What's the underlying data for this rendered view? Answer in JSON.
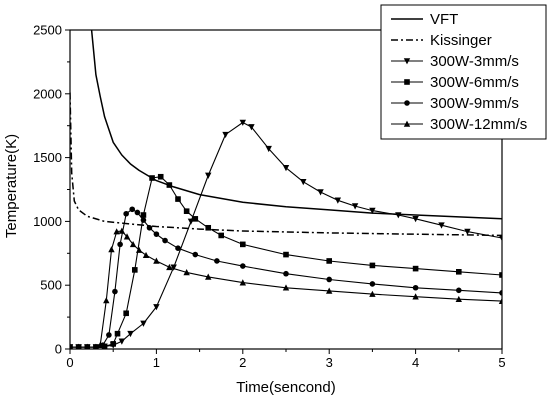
{
  "chart_data": {
    "type": "line",
    "title": "",
    "xlabel": "Time(sencond)",
    "ylabel": "Temperature(K)",
    "xlim": [
      0,
      5
    ],
    "ylim": [
      0,
      2500
    ],
    "x_ticks": [
      0,
      1,
      2,
      3,
      4,
      5
    ],
    "y_ticks": [
      0,
      500,
      1000,
      1500,
      2000,
      2500
    ],
    "grid": false,
    "legend_position": "top-right",
    "series": [
      {
        "name": "VFT",
        "line_style": "solid",
        "marker": "none",
        "x": [
          0.25,
          0.3,
          0.35,
          0.4,
          0.5,
          0.6,
          0.7,
          0.8,
          1.0,
          1.2,
          1.5,
          2.0,
          2.5,
          3.0,
          3.5,
          4.0,
          4.5,
          5.0
        ],
        "y": [
          2500,
          2150,
          1980,
          1820,
          1620,
          1520,
          1450,
          1400,
          1320,
          1270,
          1210,
          1150,
          1115,
          1090,
          1065,
          1050,
          1035,
          1020
        ]
      },
      {
        "name": "Kissinger",
        "line_style": "dashdot",
        "marker": "none",
        "x": [
          0,
          0.02,
          0.05,
          0.1,
          0.2,
          0.4,
          0.7,
          1.0,
          1.5,
          2.0,
          3.0,
          4.0,
          5.0
        ],
        "y": [
          2010,
          1380,
          1160,
          1090,
          1040,
          1000,
          980,
          960,
          940,
          925,
          910,
          900,
          890
        ]
      },
      {
        "name": "300W-3mm/s",
        "line_style": "solid",
        "marker": "triangle-down",
        "x": [
          0,
          0.1,
          0.2,
          0.3,
          0.4,
          0.5,
          0.6,
          0.7,
          0.85,
          1.0,
          1.2,
          1.4,
          1.6,
          1.8,
          2.0,
          2.1,
          2.3,
          2.5,
          2.7,
          2.9,
          3.1,
          3.3,
          3.5,
          3.8,
          4.0,
          4.3,
          4.6,
          5.0
        ],
        "y": [
          15,
          15,
          15,
          15,
          20,
          30,
          60,
          120,
          200,
          330,
          640,
          1000,
          1360,
          1680,
          1775,
          1740,
          1570,
          1420,
          1310,
          1230,
          1165,
          1120,
          1085,
          1050,
          1020,
          970,
          920,
          870
        ]
      },
      {
        "name": "300W-6mm/s",
        "line_style": "solid",
        "marker": "square",
        "x": [
          0,
          0.1,
          0.2,
          0.3,
          0.4,
          0.5,
          0.55,
          0.65,
          0.75,
          0.85,
          0.95,
          1.05,
          1.15,
          1.25,
          1.35,
          1.45,
          1.6,
          1.75,
          2.0,
          2.5,
          3.0,
          3.5,
          4.0,
          4.5,
          5.0
        ],
        "y": [
          15,
          15,
          15,
          15,
          20,
          40,
          120,
          280,
          620,
          1050,
          1340,
          1350,
          1285,
          1175,
          1080,
          1020,
          950,
          890,
          820,
          740,
          690,
          655,
          630,
          605,
          580
        ]
      },
      {
        "name": "300W-9mm/s",
        "line_style": "solid",
        "marker": "circle",
        "x": [
          0,
          0.1,
          0.2,
          0.3,
          0.38,
          0.45,
          0.52,
          0.58,
          0.65,
          0.72,
          0.78,
          0.85,
          0.92,
          1.0,
          1.1,
          1.25,
          1.45,
          1.7,
          2.0,
          2.5,
          3.0,
          3.5,
          4.0,
          4.5,
          5.0
        ],
        "y": [
          15,
          15,
          15,
          15,
          30,
          110,
          450,
          820,
          1060,
          1095,
          1070,
          1010,
          950,
          900,
          850,
          790,
          740,
          690,
          650,
          590,
          545,
          510,
          480,
          460,
          440
        ]
      },
      {
        "name": "300W-12mm/s",
        "line_style": "solid",
        "marker": "triangle-up",
        "x": [
          0,
          0.1,
          0.2,
          0.3,
          0.35,
          0.42,
          0.48,
          0.54,
          0.6,
          0.66,
          0.73,
          0.8,
          0.88,
          1.0,
          1.15,
          1.35,
          1.6,
          2.0,
          2.5,
          3.0,
          3.5,
          4.0,
          4.5,
          5.0
        ],
        "y": [
          15,
          15,
          15,
          15,
          30,
          380,
          780,
          920,
          925,
          880,
          820,
          775,
          735,
          690,
          640,
          600,
          565,
          520,
          480,
          455,
          430,
          410,
          390,
          375
        ]
      }
    ]
  }
}
